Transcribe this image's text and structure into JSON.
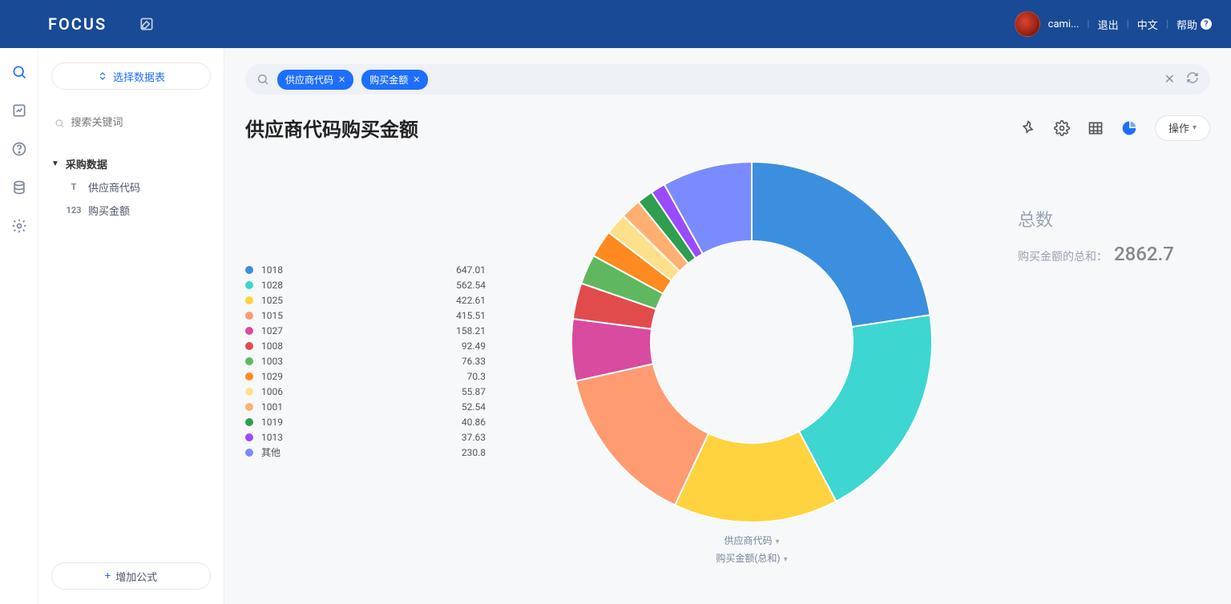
{
  "header": {
    "logo_text": "FOCUS",
    "user_name": "cami...",
    "logout": "退出",
    "lang": "中文",
    "help": "帮助"
  },
  "sidebar": {
    "select_table": "选择数据表",
    "search_placeholder": "搜索关键词",
    "tree_title": "采购数据",
    "field1": "供应商代码",
    "field2": "购买金额",
    "add_formula": "增加公式"
  },
  "searchbar": {
    "chip1": "供应商代码",
    "chip2": "购买金额"
  },
  "page": {
    "title": "供应商代码购买金额",
    "action_label": "操作"
  },
  "summary": {
    "title": "总数",
    "label": "购买金额的总和：",
    "value": "2862.7"
  },
  "axis": {
    "dim": "供应商代码",
    "measure": "购买金额(总和)"
  },
  "chart": {
    "type": "donut",
    "inner_ratio": 0.56,
    "start_angle_deg": 90,
    "background_color": "#ffffff",
    "legend_other": "其他",
    "slices": [
      {
        "label": "1018",
        "value": 647.01,
        "color": "#3b8fde"
      },
      {
        "label": "1028",
        "value": 562.54,
        "color": "#3dd6d0"
      },
      {
        "label": "1025",
        "value": 422.61,
        "color": "#ffd23f"
      },
      {
        "label": "1015",
        "value": 415.51,
        "color": "#ff9b70"
      },
      {
        "label": "1027",
        "value": 158.21,
        "color": "#d84b9e"
      },
      {
        "label": "1008",
        "value": 92.49,
        "color": "#e24b4b"
      },
      {
        "label": "1003",
        "value": 76.33,
        "color": "#5fb760"
      },
      {
        "label": "1029",
        "value": 70.3,
        "color": "#ff8a1f"
      },
      {
        "label": "1006",
        "value": 55.87,
        "color": "#ffe08a"
      },
      {
        "label": "1001",
        "value": 52.54,
        "color": "#ffb070"
      },
      {
        "label": "1019",
        "value": 40.86,
        "color": "#2e9e4f"
      },
      {
        "label": "1013",
        "value": 37.63,
        "color": "#9a4bff"
      },
      {
        "label": "其他",
        "value": 230.8,
        "color": "#7a8bff"
      }
    ]
  }
}
